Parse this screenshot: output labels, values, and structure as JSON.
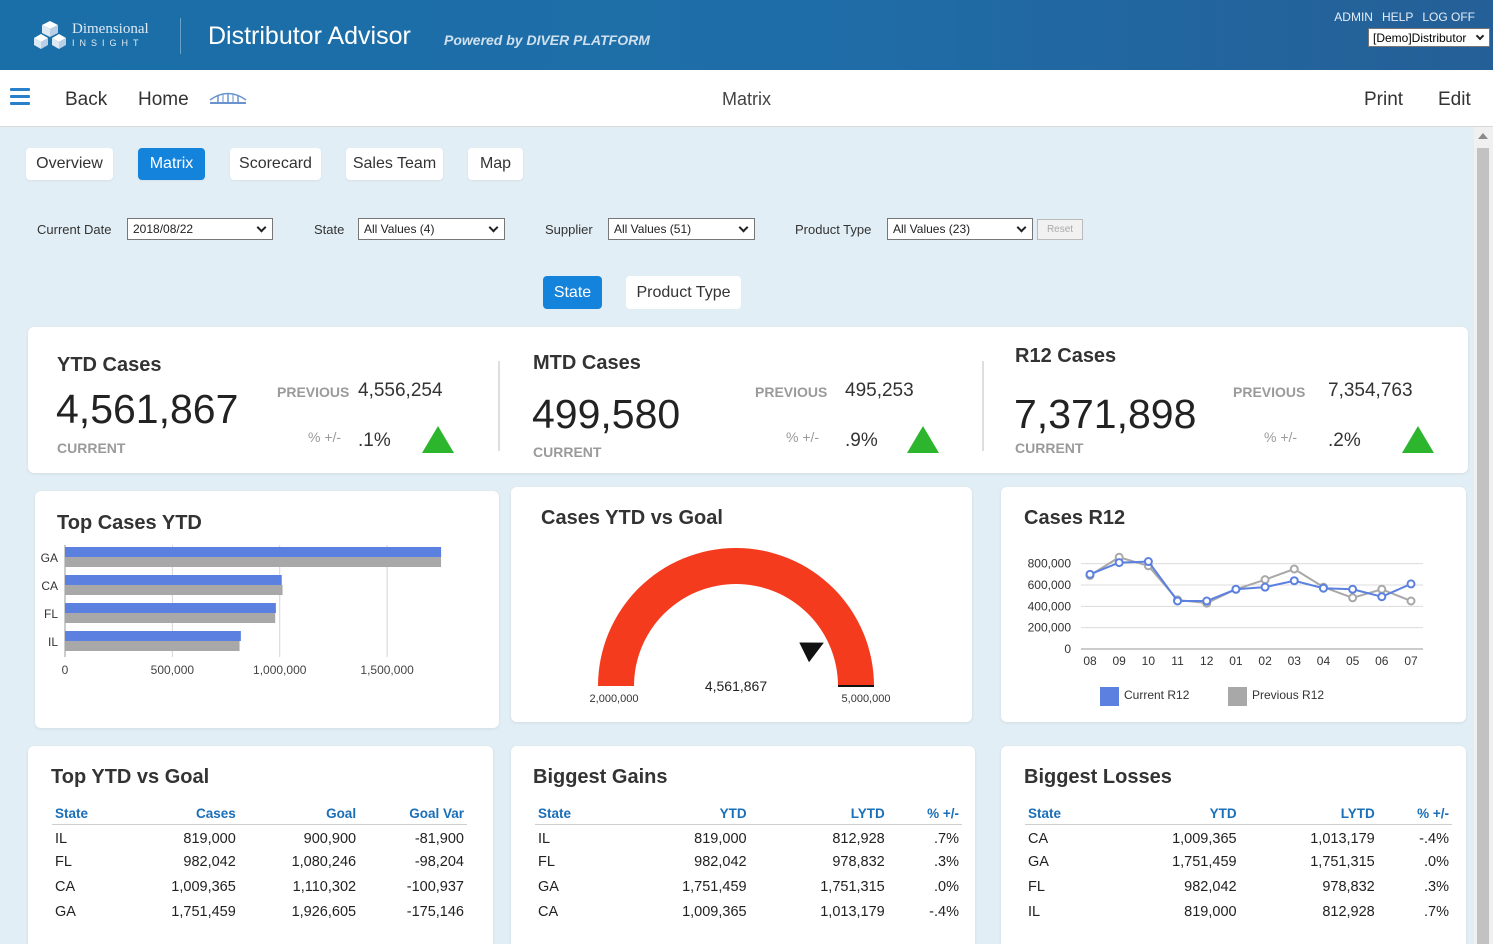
{
  "header": {
    "logo_line1": "Dimensional",
    "logo_line2": "INSIGHT",
    "app_title": "Distributor Advisor",
    "powered_by": "Powered by DIVER PLATFORM",
    "links": [
      "ADMIN",
      "HELP",
      "LOG OFF"
    ],
    "distributor_select": "[Demo]Distributor"
  },
  "nav": {
    "back": "Back",
    "home": "Home",
    "page_title": "Matrix",
    "print": "Print",
    "edit": "Edit"
  },
  "tabs": [
    {
      "label": "Overview",
      "active": false
    },
    {
      "label": "Matrix",
      "active": true
    },
    {
      "label": "Scorecard",
      "active": false
    },
    {
      "label": "Sales Team",
      "active": false
    },
    {
      "label": "Map",
      "active": false
    }
  ],
  "filters": {
    "current_date": {
      "label": "Current Date",
      "value": "2018/08/22"
    },
    "state": {
      "label": "State",
      "value": "All Values (4)"
    },
    "supplier": {
      "label": "Supplier",
      "value": "All Values (51)"
    },
    "product_type": {
      "label": "Product Type",
      "value": "All Values (23)"
    },
    "reset": "Reset"
  },
  "group_by": {
    "state": "State",
    "product_type": "Product Type",
    "active": "State"
  },
  "kpis": [
    {
      "title": "YTD Cases",
      "current": "4,561,867",
      "current_label": "CURRENT",
      "previous_label": "PREVIOUS",
      "previous": "4,556,254",
      "pct_label": "% +/-",
      "pct": ".1%",
      "trend": "up"
    },
    {
      "title": "MTD Cases",
      "current": "499,580",
      "current_label": "CURRENT",
      "previous_label": "PREVIOUS",
      "previous": "495,253",
      "pct_label": "% +/-",
      "pct": ".9%",
      "trend": "up"
    },
    {
      "title": "R12 Cases",
      "current": "7,371,898",
      "current_label": "CURRENT",
      "previous_label": "PREVIOUS",
      "previous": "7,354,763",
      "pct_label": "% +/-",
      "pct": ".2%",
      "trend": "up"
    }
  ],
  "colors": {
    "accent": "#1483db",
    "current_series": "#5b80e0",
    "previous_series": "#a8a8a8",
    "gauge": "#f43b1e",
    "trend_up": "#2db52d",
    "table_header": "#1a6fb8"
  },
  "chart_data": [
    {
      "id": "top_cases_ytd",
      "type": "bar",
      "orientation": "horizontal",
      "title": "Top Cases YTD",
      "categories": [
        "GA",
        "CA",
        "FL",
        "IL"
      ],
      "series": [
        {
          "values": [
            1751459,
            1009365,
            982042,
            819000
          ]
        },
        {
          "values": [
            1751315,
            1013179,
            978832,
            812928
          ]
        }
      ],
      "xlim": [
        0,
        1900000
      ],
      "xticks": [
        0,
        500000,
        1000000,
        1500000
      ],
      "xtick_labels": [
        "0",
        "500,000",
        "1,000,000",
        "1,500,000"
      ],
      "grid": true
    },
    {
      "id": "cases_ytd_vs_goal",
      "type": "gauge",
      "title": "Cases YTD vs Goal",
      "min": 2000000,
      "max": 5000000,
      "min_label": "2,000,000",
      "max_label": "5,000,000",
      "value": 4561867,
      "value_label": "4,561,867"
    },
    {
      "id": "cases_r12",
      "type": "line",
      "title": "Cases R12",
      "categories": [
        "08",
        "09",
        "10",
        "11",
        "12",
        "01",
        "02",
        "03",
        "04",
        "05",
        "06",
        "07"
      ],
      "series": [
        {
          "name": "Current R12",
          "values": [
            700000,
            810000,
            820000,
            450000,
            450000,
            560000,
            580000,
            640000,
            570000,
            560000,
            490000,
            610000
          ]
        },
        {
          "name": "Previous R12",
          "values": [
            690000,
            860000,
            780000,
            460000,
            430000,
            560000,
            650000,
            750000,
            580000,
            480000,
            560000,
            450000
          ]
        }
      ],
      "ylim": [
        0,
        900000
      ],
      "yticks": [
        0,
        200000,
        400000,
        600000,
        800000
      ],
      "ytick_labels": [
        "0",
        "200,000",
        "400,000",
        "600,000",
        "800,000"
      ],
      "legend": "bottom",
      "grid": true
    }
  ],
  "tables": {
    "top_ytd_vs_goal": {
      "title": "Top YTD vs Goal",
      "headers": [
        "State",
        "Cases",
        "Goal",
        "Goal Var"
      ],
      "rows": [
        [
          "IL",
          "819,000",
          "900,900",
          "-81,900"
        ],
        [
          "FL",
          "982,042",
          "1,080,246",
          "-98,204"
        ],
        [
          "CA",
          "1,009,365",
          "1,110,302",
          "-100,937"
        ],
        [
          "GA",
          "1,751,459",
          "1,926,605",
          "-175,146"
        ]
      ]
    },
    "biggest_gains": {
      "title": "Biggest Gains",
      "headers": [
        "State",
        "YTD",
        "LYTD",
        "% +/-"
      ],
      "rows": [
        [
          "IL",
          "819,000",
          "812,928",
          ".7%"
        ],
        [
          "FL",
          "982,042",
          "978,832",
          ".3%"
        ],
        [
          "GA",
          "1,751,459",
          "1,751,315",
          ".0%"
        ],
        [
          "CA",
          "1,009,365",
          "1,013,179",
          "-.4%"
        ]
      ]
    },
    "biggest_losses": {
      "title": "Biggest Losses",
      "headers": [
        "State",
        "YTD",
        "LYTD",
        "% +/-"
      ],
      "rows": [
        [
          "CA",
          "1,009,365",
          "1,013,179",
          "-.4%"
        ],
        [
          "GA",
          "1,751,459",
          "1,751,315",
          ".0%"
        ],
        [
          "FL",
          "982,042",
          "978,832",
          ".3%"
        ],
        [
          "IL",
          "819,000",
          "812,928",
          ".7%"
        ]
      ]
    }
  }
}
